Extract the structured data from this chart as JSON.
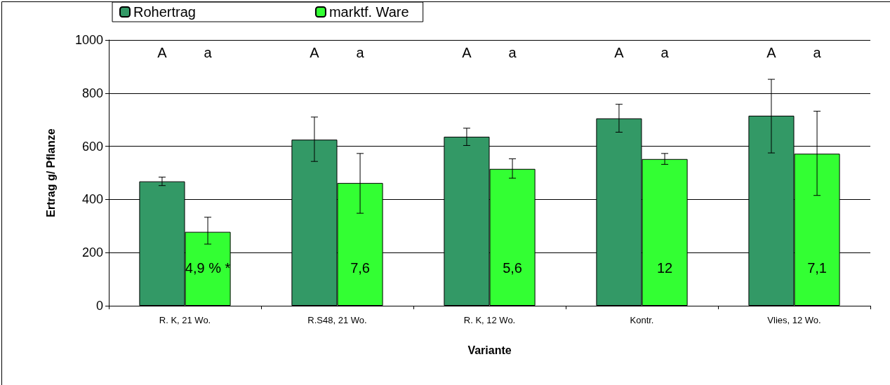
{
  "chart_data": {
    "type": "bar",
    "xlabel": "Variante",
    "ylabel": "Ertrag g/ Pflanze",
    "categories": [
      "R. K, 21 Wo.",
      "R.S48, 21 Wo.",
      "R. K, 12 Wo.",
      "Kontr.",
      "Vlies, 12 Wo."
    ],
    "series": [
      {
        "name": "Rohertrag",
        "color": "#339966",
        "values": [
          468,
          625,
          636,
          705,
          715
        ],
        "errors": [
          [
            452,
            484
          ],
          [
            543,
            710
          ],
          [
            603,
            668
          ],
          [
            653,
            758
          ],
          [
            575,
            852
          ]
        ]
      },
      {
        "name": "marktf. Ware",
        "color": "#33ff33",
        "values": [
          278,
          462,
          515,
          552,
          572
        ],
        "errors": [
          [
            232,
            333
          ],
          [
            348,
            573
          ],
          [
            480,
            553
          ],
          [
            532,
            573
          ],
          [
            415,
            732
          ]
        ]
      }
    ],
    "ylim": [
      0,
      1000
    ],
    "yticks": [
      0,
      200,
      400,
      600,
      800,
      1000
    ],
    "grid": "y",
    "legend": "top",
    "annotations": [
      "A",
      "a",
      "A",
      "a",
      "A",
      "a",
      "A",
      "a",
      "A",
      "a",
      "4,9 % *",
      "7,6",
      "5,6",
      "12",
      "7,1"
    ]
  }
}
